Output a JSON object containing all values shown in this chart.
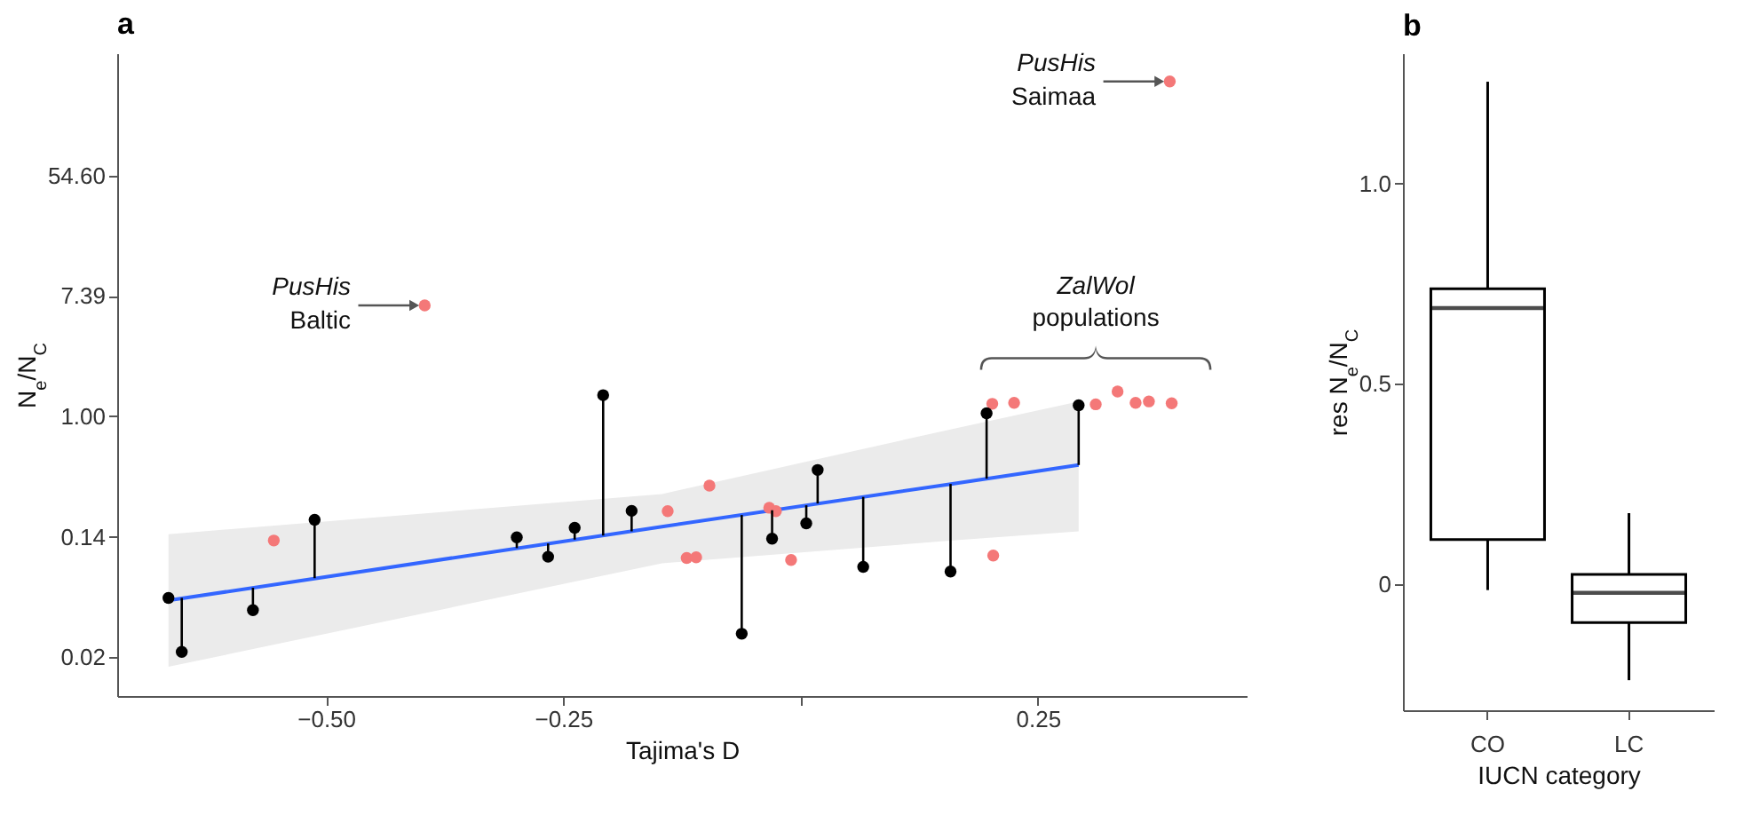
{
  "chart_data": [
    {
      "type": "scatter",
      "title": "a",
      "xlabel": "Tajima's D",
      "ylabel": "N$_{e}$/N$_{C}$",
      "log": "y",
      "marker": "circle",
      "xlim": [
        -0.72,
        0.47
      ],
      "ylim": [
        0.0096,
        415
      ],
      "xticks": [
        {
          "value": -0.5,
          "label": "−0.50"
        },
        {
          "value": -0.25,
          "label": "−0.25"
        },
        {
          "value": 0,
          "label": null
        },
        {
          "value": 0.25,
          "label": "0.25"
        }
      ],
      "yticks": [
        {
          "value": 0.0183,
          "label": "0.02"
        },
        {
          "value": 0.1353,
          "label": "0.14"
        },
        {
          "value": 1,
          "label": "1.00"
        },
        {
          "value": 7.389,
          "label": "7.39"
        },
        {
          "value": 54.6,
          "label": "54.60"
        }
      ],
      "series": [
        {
          "type": "line",
          "marker": "none",
          "color": "#3366ff",
          "x": [
            -0.666,
            -0.146,
            0.16,
            0.293
          ],
          "values": [
            0.047,
            0.16,
            0.326,
            0.445
          ],
          "lower": [
            0.0156,
            0.087,
            0.127,
            0.148
          ],
          "upper": [
            0.141,
            0.275,
            0.81,
            1.28
          ]
        },
        {
          "type": "scatter",
          "color": "#f47878",
          "x": [
            -0.555,
            -0.396,
            -0.14,
            -0.096,
            -0.12,
            -0.11,
            -0.033,
            -0.026,
            -0.01,
            0.202,
            0.225,
            0.203,
            0.311,
            0.334,
            0.353,
            0.367,
            0.391,
            0.389
          ],
          "values": [
            0.127,
            6.3,
            0.207,
            0.316,
            0.095,
            0.096,
            0.219,
            0.207,
            0.092,
            1.23,
            1.25,
            0.099,
            1.22,
            1.51,
            1.25,
            1.28,
            1.24,
            260
          ]
        },
        {
          "type": "scatter",
          "color": "#000000",
          "x": [
            -0.666,
            -0.652,
            -0.577,
            -0.512,
            -0.299,
            -0.266,
            -0.238,
            -0.208,
            -0.178,
            -0.062,
            -0.03,
            0.006,
            0.018,
            0.066,
            0.158,
            0.196,
            0.293
          ],
          "values": [
            0.049,
            0.02,
            0.04,
            0.179,
            0.134,
            0.097,
            0.157,
            1.42,
            0.208,
            0.027,
            0.131,
            0.169,
            0.41,
            0.082,
            0.076,
            1.05,
            1.2
          ],
          "errors": [
            null,
            [
              0.02,
              0.049
            ],
            [
              0.04,
              0.058
            ],
            [
              0.068,
              0.179
            ],
            [
              0.112,
              0.134
            ],
            [
              0.097,
              0.121
            ],
            [
              0.129,
              0.157
            ],
            [
              0.138,
              1.42
            ],
            [
              0.148,
              0.208
            ],
            [
              0.027,
              0.194
            ],
            [
              0.131,
              0.21
            ],
            [
              0.169,
              0.228
            ],
            [
              0.235,
              0.41
            ],
            [
              0.082,
              0.262
            ],
            [
              0.076,
              0.325
            ],
            [
              0.355,
              1.05
            ],
            [
              0.445,
              1.2
            ]
          ]
        }
      ],
      "annotations": [
        {
          "text": "PusHis Baltic",
          "x": -0.396,
          "y": 6.3
        },
        {
          "text": "PusHis Saimaa",
          "x": 0.389,
          "y": 260
        },
        {
          "text": "ZalWol populations",
          "x": 0.311,
          "y": 1.22
        }
      ]
    },
    {
      "type": "box",
      "title": "b",
      "xlabel": "IUCN category",
      "ylabel": "res N$_{e}$/N$_{C}$",
      "categories": [
        "CO",
        "LC"
      ],
      "ylim": [
        -0.315,
        1.325
      ],
      "yticks": [
        {
          "value": 0,
          "label": "0"
        },
        {
          "value": 0.5,
          "label": "0.5"
        },
        {
          "value": 1,
          "label": "1.0"
        }
      ],
      "boxes": [
        {
          "low": -0.015,
          "q1": 0.111,
          "median": 0.689,
          "q3": 0.737,
          "high": 1.254
        },
        {
          "low": -0.24,
          "q1": -0.096,
          "median": -0.022,
          "q3": 0.024,
          "high": 0.177
        }
      ]
    }
  ]
}
